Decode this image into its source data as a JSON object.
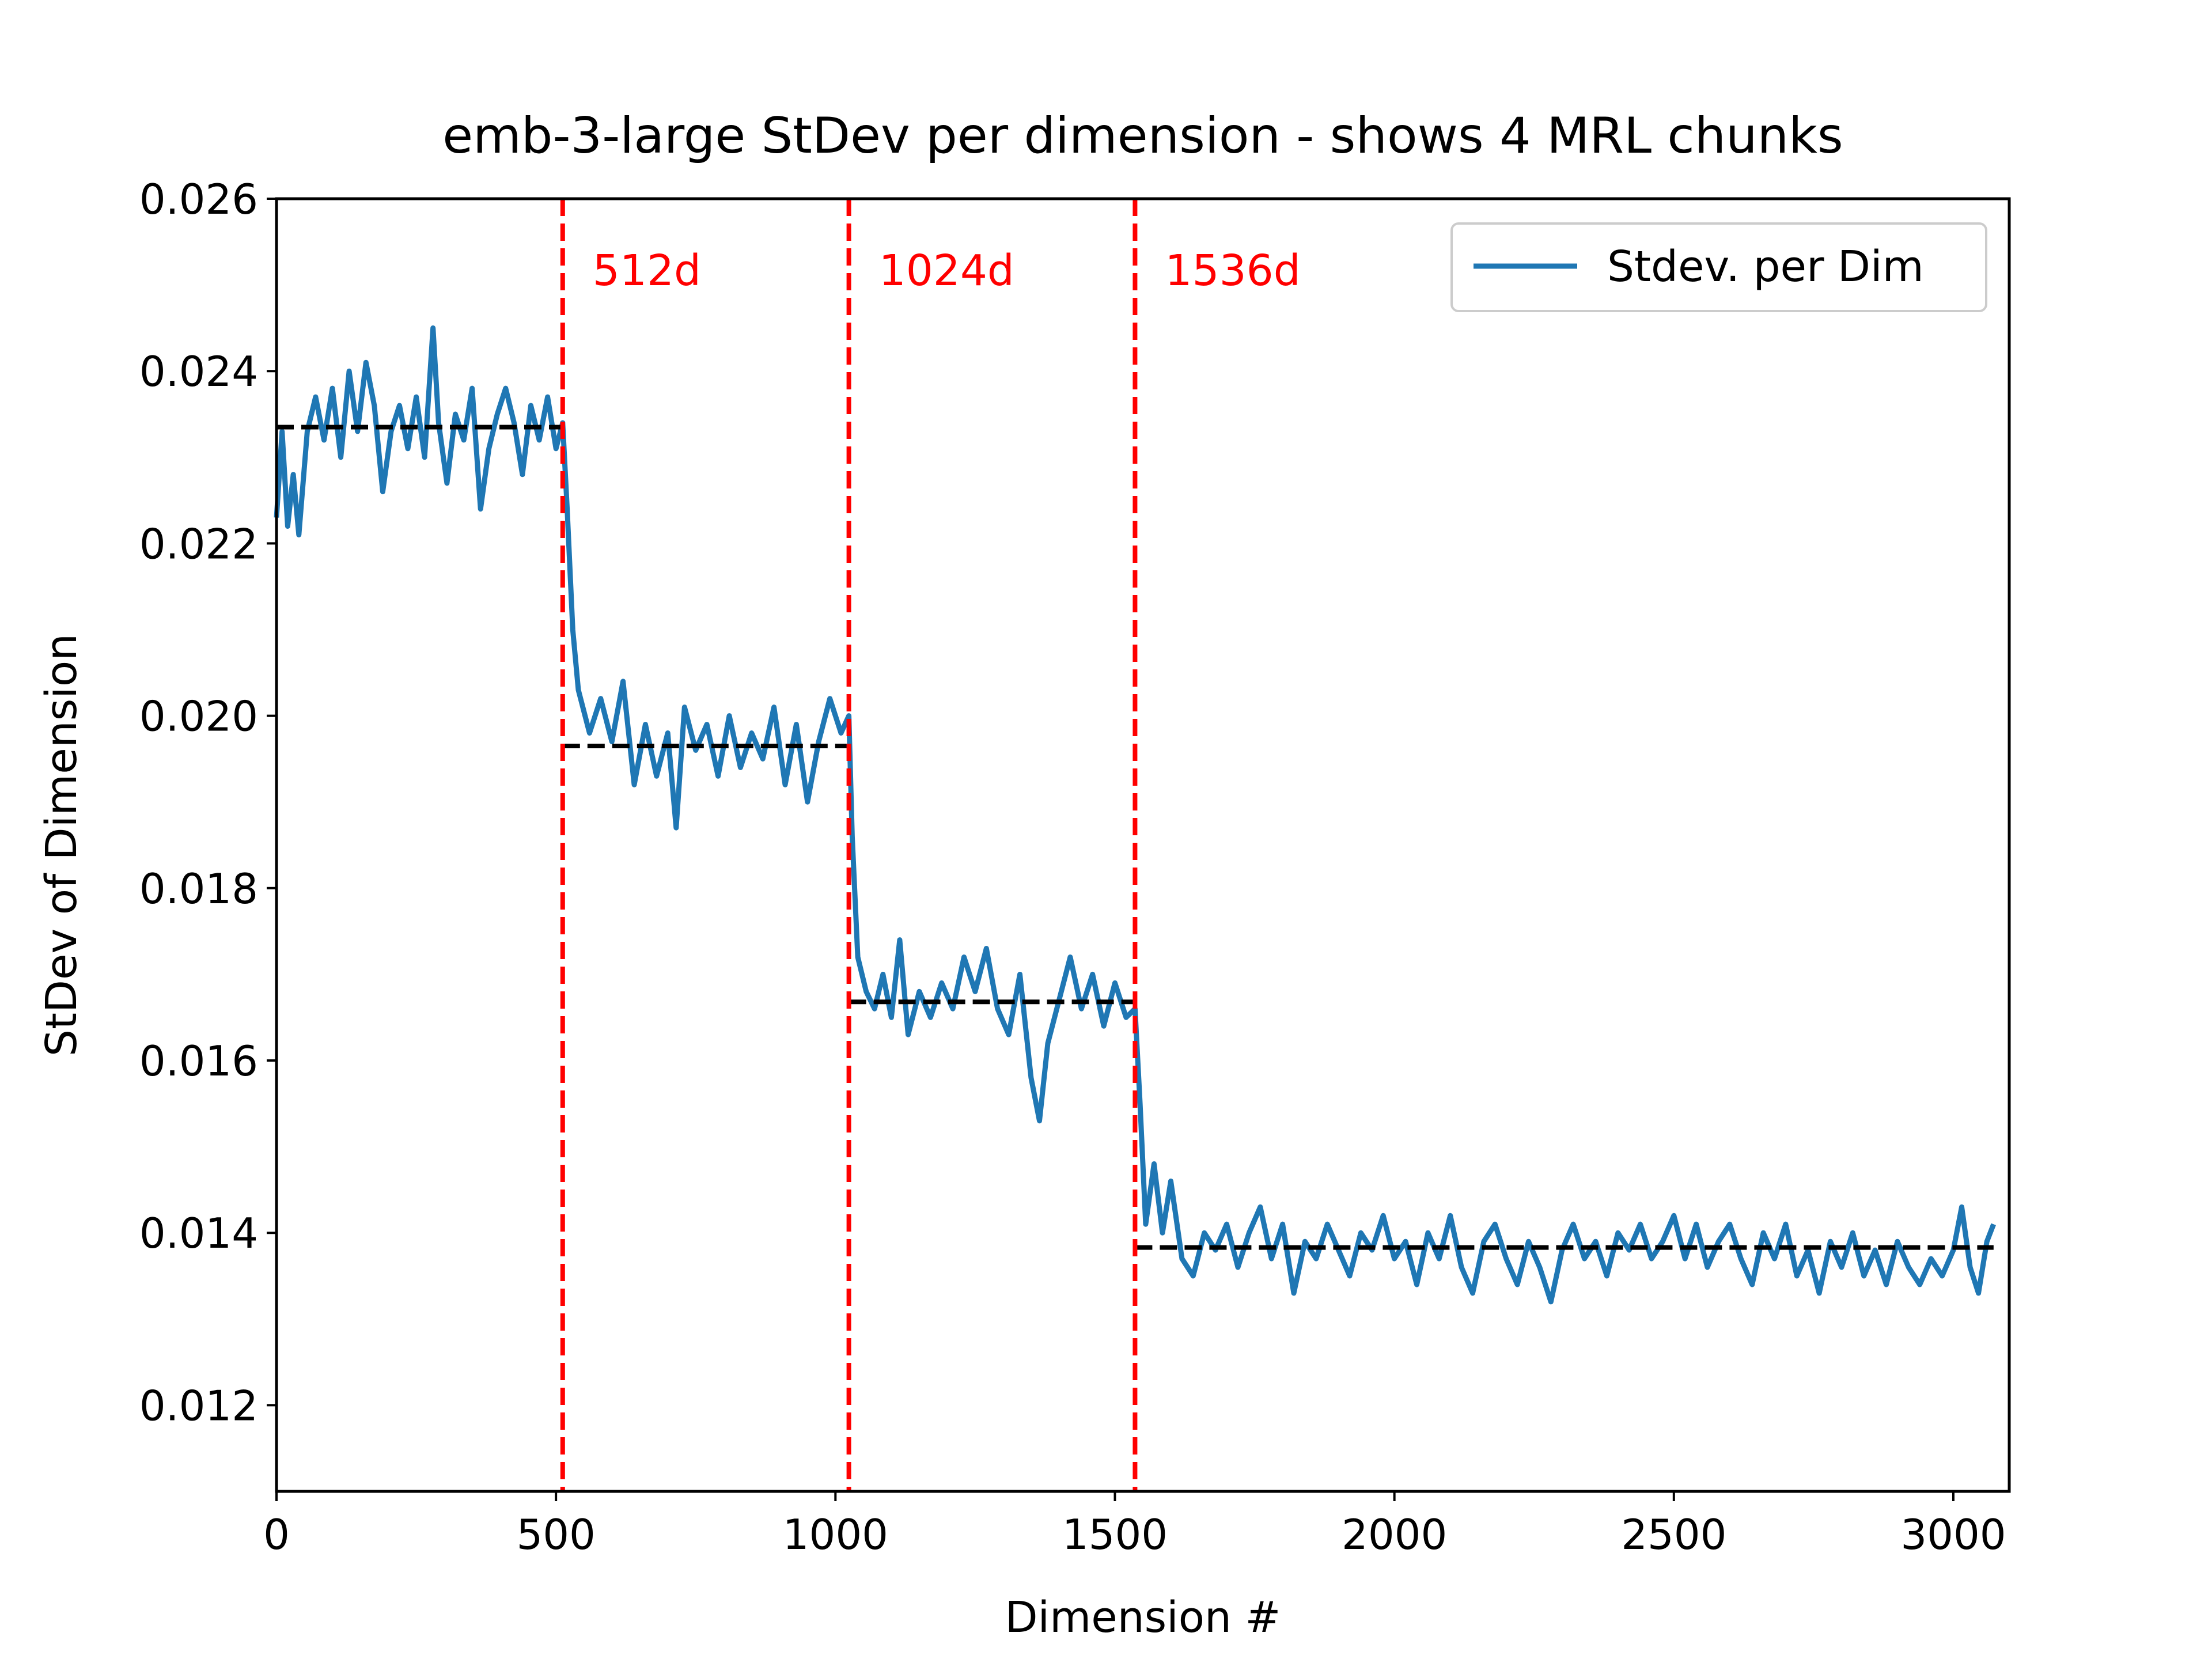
{
  "chart_data": {
    "type": "line",
    "title": "emb-3-large StDev per dimension - shows 4 MRL chunks",
    "xlabel": "Dimension #",
    "ylabel": "StDev of Dimension",
    "xlim": [
      0,
      3100
    ],
    "ylim": [
      0.011,
      0.026
    ],
    "xticks": [
      0,
      500,
      1000,
      1500,
      2000,
      2500,
      3000
    ],
    "xtick_labels": [
      "0",
      "500",
      "1000",
      "1500",
      "2000",
      "2500",
      "3000"
    ],
    "yticks": [
      0.012,
      0.014,
      0.016,
      0.018,
      0.02,
      0.022,
      0.024,
      0.026
    ],
    "ytick_labels": [
      "0.012",
      "0.014",
      "0.016",
      "0.018",
      "0.020",
      "0.022",
      "0.024",
      "0.026"
    ],
    "grid": false,
    "legend_position": "top-right",
    "series": [
      {
        "name": "Stdev. per Dim",
        "color": "#1f77b4",
        "points": [
          [
            0,
            0.0223
          ],
          [
            10,
            0.0233
          ],
          [
            20,
            0.0222
          ],
          [
            30,
            0.0228
          ],
          [
            40,
            0.0221
          ],
          [
            55,
            0.0233
          ],
          [
            70,
            0.0237
          ],
          [
            85,
            0.0232
          ],
          [
            100,
            0.0238
          ],
          [
            115,
            0.023
          ],
          [
            130,
            0.024
          ],
          [
            145,
            0.0233
          ],
          [
            160,
            0.0241
          ],
          [
            175,
            0.0236
          ],
          [
            190,
            0.0226
          ],
          [
            205,
            0.0233
          ],
          [
            220,
            0.0236
          ],
          [
            235,
            0.0231
          ],
          [
            250,
            0.0237
          ],
          [
            265,
            0.023
          ],
          [
            280,
            0.0245
          ],
          [
            290,
            0.0234
          ],
          [
            305,
            0.0227
          ],
          [
            320,
            0.0235
          ],
          [
            335,
            0.0232
          ],
          [
            350,
            0.0238
          ],
          [
            365,
            0.0224
          ],
          [
            380,
            0.0231
          ],
          [
            395,
            0.0235
          ],
          [
            410,
            0.0238
          ],
          [
            425,
            0.0234
          ],
          [
            440,
            0.0228
          ],
          [
            455,
            0.0236
          ],
          [
            470,
            0.0232
          ],
          [
            485,
            0.0237
          ],
          [
            500,
            0.0231
          ],
          [
            512,
            0.0234
          ],
          [
            520,
            0.0224
          ],
          [
            530,
            0.021
          ],
          [
            540,
            0.0203
          ],
          [
            560,
            0.0198
          ],
          [
            580,
            0.0202
          ],
          [
            600,
            0.0197
          ],
          [
            620,
            0.0204
          ],
          [
            640,
            0.0192
          ],
          [
            660,
            0.0199
          ],
          [
            680,
            0.0193
          ],
          [
            700,
            0.0198
          ],
          [
            715,
            0.0187
          ],
          [
            730,
            0.0201
          ],
          [
            750,
            0.0196
          ],
          [
            770,
            0.0199
          ],
          [
            790,
            0.0193
          ],
          [
            810,
            0.02
          ],
          [
            830,
            0.0194
          ],
          [
            850,
            0.0198
          ],
          [
            870,
            0.0195
          ],
          [
            890,
            0.0201
          ],
          [
            910,
            0.0192
          ],
          [
            930,
            0.0199
          ],
          [
            950,
            0.019
          ],
          [
            970,
            0.0197
          ],
          [
            990,
            0.0202
          ],
          [
            1010,
            0.0198
          ],
          [
            1024,
            0.02
          ],
          [
            1030,
            0.0186
          ],
          [
            1040,
            0.0172
          ],
          [
            1055,
            0.0168
          ],
          [
            1070,
            0.0166
          ],
          [
            1085,
            0.017
          ],
          [
            1100,
            0.0165
          ],
          [
            1115,
            0.0174
          ],
          [
            1130,
            0.0163
          ],
          [
            1150,
            0.0168
          ],
          [
            1170,
            0.0165
          ],
          [
            1190,
            0.0169
          ],
          [
            1210,
            0.0166
          ],
          [
            1230,
            0.0172
          ],
          [
            1250,
            0.0168
          ],
          [
            1270,
            0.0173
          ],
          [
            1290,
            0.0166
          ],
          [
            1310,
            0.0163
          ],
          [
            1330,
            0.017
          ],
          [
            1350,
            0.0158
          ],
          [
            1365,
            0.0153
          ],
          [
            1380,
            0.0162
          ],
          [
            1400,
            0.0167
          ],
          [
            1420,
            0.0172
          ],
          [
            1440,
            0.0166
          ],
          [
            1460,
            0.017
          ],
          [
            1480,
            0.0164
          ],
          [
            1500,
            0.0169
          ],
          [
            1520,
            0.0165
          ],
          [
            1536,
            0.0166
          ],
          [
            1545,
            0.0155
          ],
          [
            1555,
            0.0141
          ],
          [
            1570,
            0.0148
          ],
          [
            1585,
            0.014
          ],
          [
            1600,
            0.0146
          ],
          [
            1620,
            0.0137
          ],
          [
            1640,
            0.0135
          ],
          [
            1660,
            0.014
          ],
          [
            1680,
            0.0138
          ],
          [
            1700,
            0.0141
          ],
          [
            1720,
            0.0136
          ],
          [
            1740,
            0.014
          ],
          [
            1760,
            0.0143
          ],
          [
            1780,
            0.0137
          ],
          [
            1800,
            0.0141
          ],
          [
            1820,
            0.0133
          ],
          [
            1840,
            0.0139
          ],
          [
            1860,
            0.0137
          ],
          [
            1880,
            0.0141
          ],
          [
            1900,
            0.0138
          ],
          [
            1920,
            0.0135
          ],
          [
            1940,
            0.014
          ],
          [
            1960,
            0.0138
          ],
          [
            1980,
            0.0142
          ],
          [
            2000,
            0.0137
          ],
          [
            2020,
            0.0139
          ],
          [
            2040,
            0.0134
          ],
          [
            2060,
            0.014
          ],
          [
            2080,
            0.0137
          ],
          [
            2100,
            0.0142
          ],
          [
            2120,
            0.0136
          ],
          [
            2140,
            0.0133
          ],
          [
            2160,
            0.0139
          ],
          [
            2180,
            0.0141
          ],
          [
            2200,
            0.0137
          ],
          [
            2220,
            0.0134
          ],
          [
            2240,
            0.0139
          ],
          [
            2260,
            0.0136
          ],
          [
            2280,
            0.0132
          ],
          [
            2300,
            0.0138
          ],
          [
            2320,
            0.0141
          ],
          [
            2340,
            0.0137
          ],
          [
            2360,
            0.0139
          ],
          [
            2380,
            0.0135
          ],
          [
            2400,
            0.014
          ],
          [
            2420,
            0.0138
          ],
          [
            2440,
            0.0141
          ],
          [
            2460,
            0.0137
          ],
          [
            2480,
            0.0139
          ],
          [
            2500,
            0.0142
          ],
          [
            2520,
            0.0137
          ],
          [
            2540,
            0.0141
          ],
          [
            2560,
            0.0136
          ],
          [
            2580,
            0.0139
          ],
          [
            2600,
            0.0141
          ],
          [
            2620,
            0.0137
          ],
          [
            2640,
            0.0134
          ],
          [
            2660,
            0.014
          ],
          [
            2680,
            0.0137
          ],
          [
            2700,
            0.0141
          ],
          [
            2720,
            0.0135
          ],
          [
            2740,
            0.0138
          ],
          [
            2760,
            0.0133
          ],
          [
            2780,
            0.0139
          ],
          [
            2800,
            0.0136
          ],
          [
            2820,
            0.014
          ],
          [
            2840,
            0.0135
          ],
          [
            2860,
            0.0138
          ],
          [
            2880,
            0.0134
          ],
          [
            2900,
            0.0139
          ],
          [
            2920,
            0.0136
          ],
          [
            2940,
            0.0134
          ],
          [
            2960,
            0.0137
          ],
          [
            2980,
            0.0135
          ],
          [
            3000,
            0.0138
          ],
          [
            3015,
            0.0143
          ],
          [
            3030,
            0.0136
          ],
          [
            3045,
            0.0133
          ],
          [
            3060,
            0.0139
          ],
          [
            3072,
            0.0141
          ]
        ]
      }
    ],
    "chunk_means": [
      {
        "x0": 0,
        "x1": 512,
        "y": 0.02335
      },
      {
        "x0": 512,
        "x1": 1024,
        "y": 0.01965
      },
      {
        "x0": 1024,
        "x1": 1536,
        "y": 0.01668
      },
      {
        "x0": 1536,
        "x1": 3072,
        "y": 0.01383
      }
    ],
    "chunk_boundaries": [
      {
        "x": 512,
        "label": "512d"
      },
      {
        "x": 1024,
        "label": "1024d"
      },
      {
        "x": 1536,
        "label": "1536d"
      }
    ],
    "annotation_color": "#ff0000",
    "mean_line_color": "#000000"
  }
}
